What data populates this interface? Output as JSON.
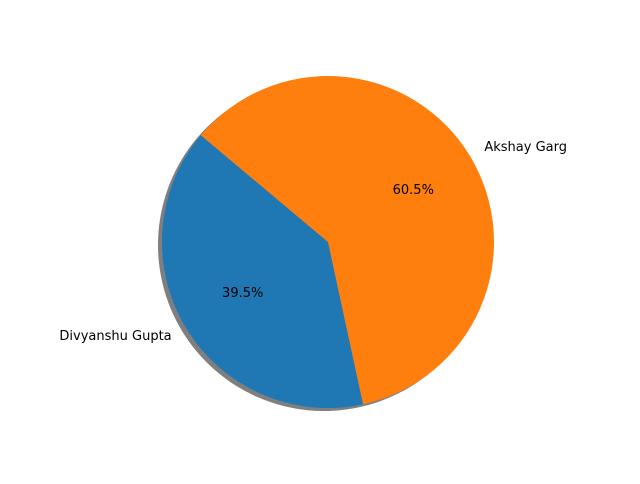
{
  "chart_data": {
    "type": "pie",
    "title": "",
    "labels": [
      "Divyanshu Gupta",
      "Akshay Garg"
    ],
    "values": [
      39.5,
      60.5
    ],
    "value_labels": [
      "39.5%",
      "60.5%"
    ],
    "colors": [
      "#1f77b4",
      "#ff7f0e"
    ],
    "start_angle_deg": 140,
    "shadow": true,
    "legend": "none"
  }
}
